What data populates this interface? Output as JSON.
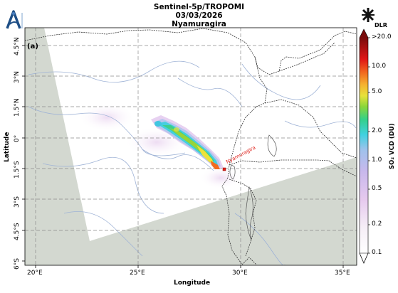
{
  "title": {
    "line1": "Sentinel-5p/TROPOMI",
    "line2": "03/03/2026",
    "line3": "Nyamuragira"
  },
  "panel_tag": "(a)",
  "logos": {
    "left_icon": "agency-a-logo-icon",
    "right_icon": "dlr-logo-icon",
    "right_text": "DLR"
  },
  "axes": {
    "xlabel": "Longitude",
    "ylabel": "Latitude",
    "lon_ticks": [
      "20°E",
      "25°E",
      "30°E",
      "35°E"
    ],
    "lat_ticks": [
      "4.5°N",
      "3°N",
      "1.5°N",
      "0°",
      "1.5°S",
      "3°S",
      "4.5°S",
      "6°S"
    ]
  },
  "colorbar": {
    "label": "SO₂ VCD (DU)",
    "ticks": [
      ">20.0",
      "10.0",
      "5.0",
      "2.0",
      "1.0",
      "0.5",
      "0.2",
      "0.1"
    ],
    "scale": "log"
  },
  "volcano": {
    "label": "Nyamuragira",
    "marker_color": "#e0201a"
  },
  "colors": {
    "no_data_gray": "#d3d8d0",
    "swath_white": "#ffffff",
    "grid": "#9a9a9a",
    "river": "#9fb3d6",
    "border": "#333333"
  }
}
